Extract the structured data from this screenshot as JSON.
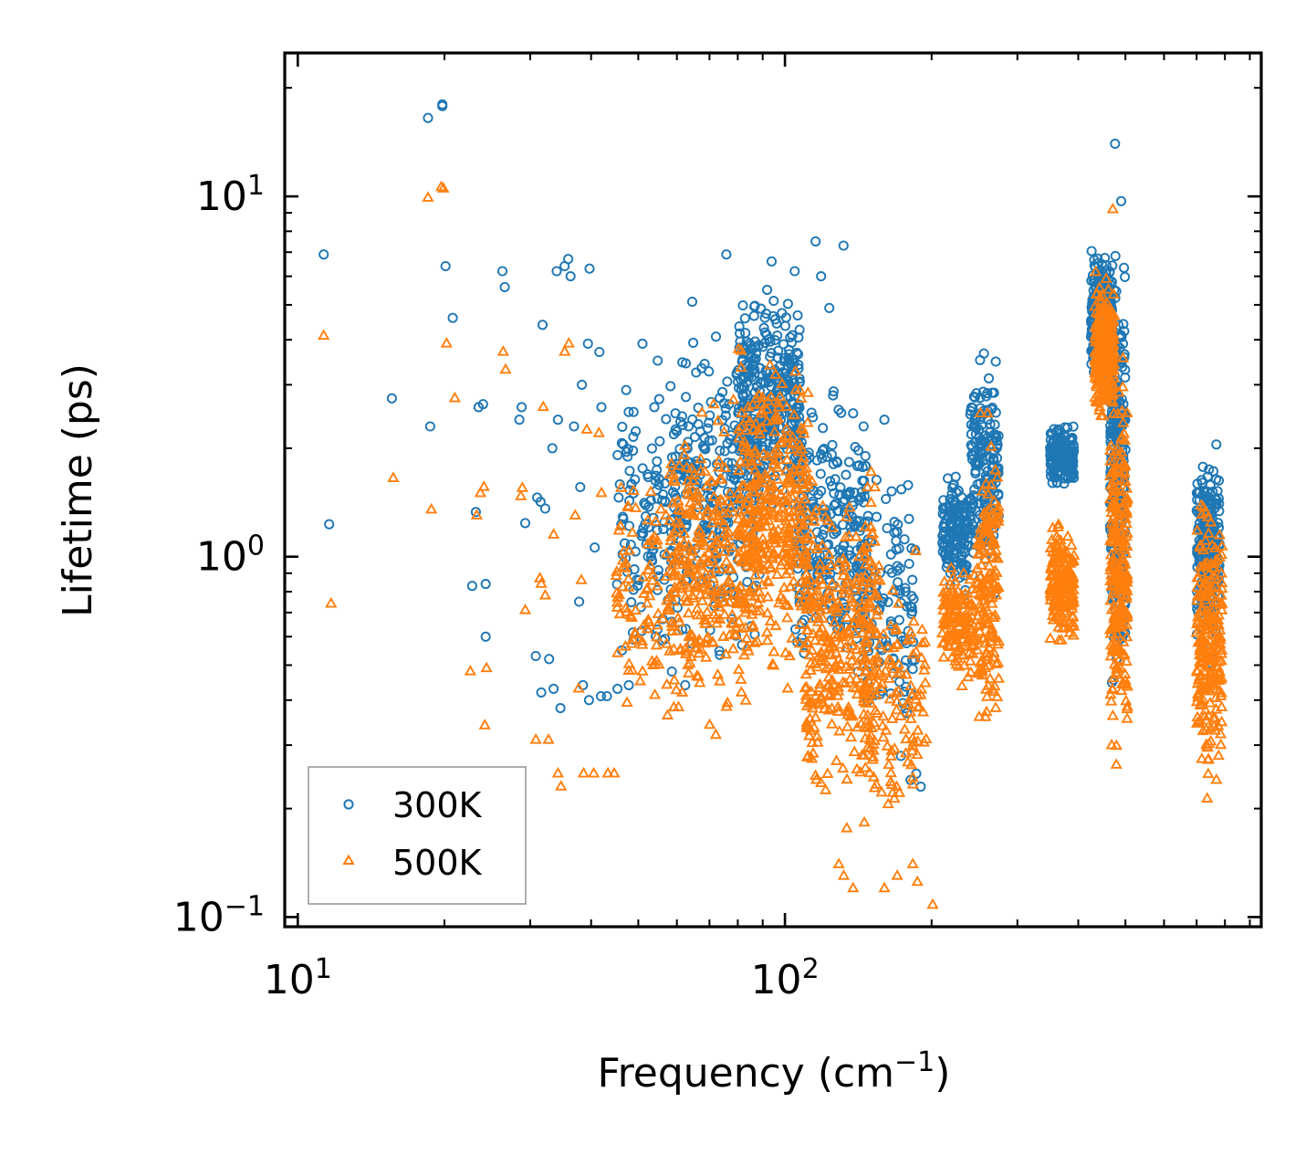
{
  "chart_data": {
    "type": "scatter",
    "title": "",
    "xlabel": {
      "main": "Frequency (cm",
      "sup": "−1",
      "tail": ")"
    },
    "ylabel": "Lifetime (ps)",
    "xscale": "log",
    "yscale": "log",
    "xlim": [
      9.4,
      950
    ],
    "ylim": [
      0.094,
      25
    ],
    "xticks": [
      {
        "value": 10,
        "base": "10",
        "exp": "1"
      },
      {
        "value": 100,
        "base": "10",
        "exp": "2"
      }
    ],
    "yticks": [
      {
        "value": 0.1,
        "base": "10",
        "exp": "−1"
      },
      {
        "value": 1,
        "base": "10",
        "exp": "0"
      },
      {
        "value": 10,
        "base": "10",
        "exp": "1"
      }
    ],
    "legend_position": "lower-left",
    "colors": {
      "s300": "#1f77b4",
      "s500": "#ff7f0e"
    },
    "series": [
      {
        "name": "300K",
        "marker": "circle",
        "color": "#1f77b4",
        "points": [
          [
            11.3,
            6.9
          ],
          [
            11.6,
            1.23
          ],
          [
            15.6,
            2.75
          ],
          [
            18.5,
            16.5
          ],
          [
            18.7,
            2.3
          ],
          [
            19.8,
            18.0
          ],
          [
            19.8,
            17.8
          ],
          [
            20.1,
            6.4
          ],
          [
            20.8,
            4.6
          ],
          [
            22.8,
            0.83
          ],
          [
            23.2,
            1.33
          ],
          [
            23.5,
            2.6
          ],
          [
            24.0,
            2.65
          ],
          [
            24.3,
            0.84
          ],
          [
            24.3,
            0.6
          ],
          [
            26.3,
            6.2
          ],
          [
            26.6,
            5.6
          ],
          [
            28.5,
            2.4
          ],
          [
            28.8,
            2.6
          ],
          [
            29.3,
            1.24
          ],
          [
            30.8,
            0.53
          ],
          [
            31.0,
            1.46
          ],
          [
            31.5,
            1.42
          ],
          [
            31.8,
            4.4
          ],
          [
            31.6,
            0.42
          ],
          [
            32.2,
            1.36
          ],
          [
            32.8,
            0.52
          ],
          [
            33.3,
            2.0
          ],
          [
            33.5,
            0.43
          ],
          [
            34.0,
            6.2
          ],
          [
            34.2,
            2.4
          ],
          [
            34.6,
            0.38
          ],
          [
            35.3,
            6.4
          ],
          [
            35.9,
            6.7
          ],
          [
            36.3,
            6.0
          ],
          [
            36.9,
            2.3
          ],
          [
            37.8,
            0.75
          ],
          [
            38.0,
            1.56
          ],
          [
            38.5,
            0.44
          ],
          [
            38.3,
            3.0
          ],
          [
            39.4,
            3.9
          ],
          [
            39.7,
            6.3
          ],
          [
            39.6,
            0.4
          ],
          [
            40.7,
            1.06
          ],
          [
            41.9,
            0.41
          ],
          [
            41.6,
            3.7
          ],
          [
            42.0,
            2.6
          ],
          [
            43.1,
            0.41
          ],
          [
            45.3,
            0.43
          ],
          [
            47.2,
            2.9
          ],
          [
            47.8,
            0.44
          ],
          [
            51.0,
            3.9
          ],
          [
            54.8,
            3.5
          ],
          [
            58.6,
            0.48
          ],
          [
            59.6,
            2.5
          ],
          [
            62.4,
            0.44
          ],
          [
            64.5,
            5.1
          ],
          [
            75.8,
            6.9
          ],
          [
            93.9,
            6.6
          ],
          [
            104.7,
            6.2
          ],
          [
            115.6,
            7.5
          ],
          [
            118.6,
            6.0
          ],
          [
            123.3,
            4.9
          ],
          [
            131.9,
            7.3
          ],
          [
            138.0,
            2.5
          ],
          [
            145.0,
            2.3
          ],
          [
            160.0,
            2.4
          ],
          [
            162.0,
            1.2
          ],
          [
            173.0,
            0.28
          ],
          [
            181.0,
            0.24
          ],
          [
            186.0,
            0.25
          ],
          [
            190.0,
            0.23
          ],
          [
            476.0,
            14.0
          ],
          [
            490.0,
            9.7
          ]
        ],
        "clusters": [
          {
            "xmin": 45,
            "xmax": 60,
            "ymin": 0.42,
            "ymax": 3.6,
            "n": 110
          },
          {
            "xmin": 58,
            "xmax": 90,
            "ymin": 0.45,
            "ymax": 5.2,
            "n": 300
          },
          {
            "xmin": 80,
            "xmax": 108,
            "ymin": 1.1,
            "ymax": 6.2,
            "n": 340
          },
          {
            "xmin": 105,
            "xmax": 148,
            "ymin": 0.4,
            "ymax": 3.3,
            "n": 240
          },
          {
            "xmin": 140,
            "xmax": 185,
            "ymin": 0.24,
            "ymax": 2.5,
            "n": 130
          },
          {
            "xmin": 210,
            "xmax": 238,
            "ymin": 0.7,
            "ymax": 1.9,
            "n": 150
          },
          {
            "xmin": 240,
            "xmax": 275,
            "ymin": 0.7,
            "ymax": 4.4,
            "n": 180
          },
          {
            "xmin": 350,
            "xmax": 392,
            "ymin": 1.5,
            "ymax": 2.4,
            "n": 180
          },
          {
            "xmin": 425,
            "xmax": 470,
            "ymin": 2.8,
            "ymax": 7.8,
            "n": 260
          },
          {
            "xmin": 465,
            "xmax": 500,
            "ymin": 0.32,
            "ymax": 8.5,
            "n": 260
          },
          {
            "xmin": 700,
            "xmax": 780,
            "ymin": 0.45,
            "ymax": 2.4,
            "n": 240
          }
        ]
      },
      {
        "name": "500K",
        "marker": "triangle",
        "color": "#ff7f0e",
        "points": [
          [
            11.3,
            4.1
          ],
          [
            11.7,
            0.74
          ],
          [
            15.7,
            1.65
          ],
          [
            18.5,
            9.9
          ],
          [
            18.8,
            1.35
          ],
          [
            19.7,
            10.6
          ],
          [
            19.9,
            10.5
          ],
          [
            20.2,
            3.9
          ],
          [
            21.0,
            2.75
          ],
          [
            22.6,
            0.48
          ],
          [
            23.3,
            1.3
          ],
          [
            23.7,
            1.5
          ],
          [
            24.1,
            1.56
          ],
          [
            24.4,
            0.49
          ],
          [
            24.2,
            0.34
          ],
          [
            26.4,
            3.7
          ],
          [
            26.7,
            3.3
          ],
          [
            28.7,
            1.47
          ],
          [
            28.9,
            1.55
          ],
          [
            29.3,
            0.71
          ],
          [
            30.8,
            0.31
          ],
          [
            31.4,
            0.87
          ],
          [
            31.6,
            0.84
          ],
          [
            31.9,
            2.6
          ],
          [
            32.2,
            0.78
          ],
          [
            32.7,
            0.31
          ],
          [
            33.5,
            1.15
          ],
          [
            34.2,
            0.25
          ],
          [
            34.7,
            0.23
          ],
          [
            35.3,
            3.7
          ],
          [
            36.0,
            3.9
          ],
          [
            37.1,
            1.3
          ],
          [
            37.7,
            0.43
          ],
          [
            38.2,
            0.86
          ],
          [
            38.6,
            0.25
          ],
          [
            39.2,
            2.25
          ],
          [
            40.5,
            0.25
          ],
          [
            41.5,
            2.2
          ],
          [
            42.0,
            1.5
          ],
          [
            43.3,
            0.25
          ],
          [
            44.6,
            0.25
          ],
          [
            116.0,
            0.24
          ],
          [
            129.0,
            0.14
          ],
          [
            132.0,
            0.13
          ],
          [
            138.0,
            0.12
          ],
          [
            160.0,
            0.12
          ],
          [
            170.0,
            0.13
          ],
          [
            183.0,
            0.14
          ],
          [
            187.0,
            0.125
          ],
          [
            201.0,
            0.108
          ],
          [
            471.0,
            9.2
          ]
        ],
        "clusters": [
          {
            "xmin": 45,
            "xmax": 62,
            "ymin": 0.25,
            "ymax": 2.3,
            "n": 110
          },
          {
            "xmin": 58,
            "xmax": 88,
            "ymin": 0.27,
            "ymax": 3.2,
            "n": 300
          },
          {
            "xmin": 80,
            "xmax": 112,
            "ymin": 0.4,
            "ymax": 4.4,
            "n": 360
          },
          {
            "xmin": 110,
            "xmax": 155,
            "ymin": 0.16,
            "ymax": 2.0,
            "n": 330
          },
          {
            "xmin": 145,
            "xmax": 195,
            "ymin": 0.13,
            "ymax": 1.3,
            "n": 130
          },
          {
            "xmin": 210,
            "xmax": 245,
            "ymin": 0.4,
            "ymax": 1.1,
            "n": 140
          },
          {
            "xmin": 248,
            "xmax": 275,
            "ymin": 0.26,
            "ymax": 2.6,
            "n": 170
          },
          {
            "xmin": 350,
            "xmax": 392,
            "ymin": 0.52,
            "ymax": 1.4,
            "n": 180
          },
          {
            "xmin": 432,
            "xmax": 475,
            "ymin": 2.2,
            "ymax": 6.5,
            "n": 240
          },
          {
            "xmin": 465,
            "xmax": 505,
            "ymin": 0.2,
            "ymax": 4.2,
            "n": 260
          },
          {
            "xmin": 700,
            "xmax": 790,
            "ymin": 0.19,
            "ymax": 1.7,
            "n": 240
          }
        ]
      }
    ]
  }
}
